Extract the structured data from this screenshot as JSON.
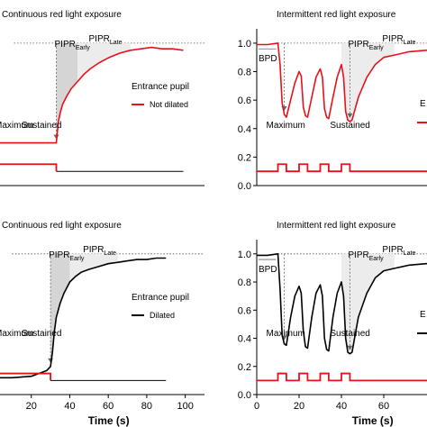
{
  "chart_data": [
    {
      "type": "line",
      "title": "Continuous red light exposure",
      "xlim": [
        0,
        100
      ],
      "ylim": [
        0,
        1.05
      ],
      "xticks": [],
      "yticks": [],
      "marker_labels": {
        "maximum": "Maximum",
        "sustained": "Sustained"
      },
      "pipr_early": {
        "base": "PIPR",
        "sub": "Early"
      },
      "pipr_late": {
        "base": "PIPR",
        "sub": "Late"
      },
      "legend": {
        "title": "Entrance pupil",
        "entry": "Not dilated",
        "color": "#e8101a"
      },
      "series": [
        {
          "color": "#e8101a",
          "x": [
            0,
            10,
            20,
            30,
            31,
            32,
            33,
            35,
            37,
            40,
            43,
            46,
            50,
            55,
            60,
            65,
            70,
            75,
            80,
            85,
            90
          ],
          "y": [
            0.3,
            0.3,
            0.3,
            0.3,
            0.45,
            0.52,
            0.57,
            0.63,
            0.68,
            0.73,
            0.78,
            0.82,
            0.86,
            0.9,
            0.93,
            0.95,
            0.96,
            0.97,
            0.96,
            0.96,
            0.95
          ]
        }
      ],
      "stimulus": {
        "on": [
          [
            0,
            30
          ]
        ],
        "high": 0.15,
        "low": 0.1,
        "end": 90,
        "color": "#e8101a"
      }
    },
    {
      "type": "line",
      "title": "Intermittent red light exposure",
      "xlim": [
        0,
        100
      ],
      "ylim": [
        0,
        1.05
      ],
      "xticks": [],
      "yticks": [
        0.0,
        0.2,
        0.4,
        0.6,
        0.8,
        1.0
      ],
      "ytick_labels": [
        "0.0",
        "0.2",
        "0.4",
        "0.6",
        "0.8",
        "1.0"
      ],
      "bpd_label": "BPD",
      "marker_labels": {
        "maximum": "Maximum",
        "sustained": "Sustained"
      },
      "pipr_early": {
        "base": "PIPR",
        "sub": "Early"
      },
      "pipr_late": {
        "base": "PIPR",
        "sub": "Late"
      },
      "legend": {
        "partial": "E",
        "color": "#e8101a"
      },
      "series": [
        {
          "color": "#e8101a",
          "x": [
            0,
            5,
            10,
            11,
            12,
            13,
            14,
            16,
            18,
            20,
            21,
            22,
            23,
            24,
            26,
            28,
            30,
            31,
            32,
            33,
            34,
            36,
            38,
            40,
            41,
            42,
            43,
            44,
            45,
            48,
            52,
            56,
            60,
            66,
            72,
            80,
            90
          ],
          "y": [
            0.99,
            0.99,
            1.0,
            0.85,
            0.58,
            0.5,
            0.48,
            0.6,
            0.72,
            0.8,
            0.77,
            0.55,
            0.49,
            0.48,
            0.62,
            0.76,
            0.82,
            0.76,
            0.54,
            0.48,
            0.47,
            0.62,
            0.76,
            0.85,
            0.76,
            0.52,
            0.46,
            0.45,
            0.46,
            0.62,
            0.76,
            0.85,
            0.9,
            0.92,
            0.94,
            0.95,
            0.96
          ]
        }
      ],
      "stimulus": {
        "on": [
          [
            10,
            14
          ],
          [
            20,
            24
          ],
          [
            30,
            34
          ],
          [
            40,
            44
          ]
        ],
        "high": 0.15,
        "low": 0.1,
        "end": 100,
        "color": "#e8101a"
      }
    },
    {
      "type": "line",
      "title": "Continuous red light exposure",
      "xlim": [
        0,
        110
      ],
      "ylim": [
        0,
        1.05
      ],
      "xticks": [
        20,
        40,
        60,
        80,
        100
      ],
      "xlabel": "Time (s)",
      "yticks": [],
      "marker_labels": {
        "maximum": "Maximum",
        "sustained": "Sustained"
      },
      "pipr_early": {
        "base": "PIPR",
        "sub": "Early"
      },
      "pipr_late": {
        "base": "PIPR",
        "sub": "Late"
      },
      "legend": {
        "title": "Entrance pupil",
        "entry": "Dilated",
        "color": "#000000"
      },
      "series": [
        {
          "color": "#000000",
          "x": [
            0,
            10,
            20,
            28,
            30,
            31,
            32,
            33,
            35,
            37,
            40,
            43,
            46,
            50,
            55,
            60,
            65,
            70,
            75,
            80,
            85,
            90
          ],
          "y": [
            0.12,
            0.12,
            0.13,
            0.17,
            0.2,
            0.3,
            0.45,
            0.55,
            0.65,
            0.72,
            0.8,
            0.84,
            0.87,
            0.89,
            0.91,
            0.93,
            0.94,
            0.95,
            0.96,
            0.96,
            0.97,
            0.97
          ]
        }
      ],
      "stimulus": {
        "on": [
          [
            0,
            30
          ]
        ],
        "high": 0.15,
        "low": 0.1,
        "end": 90,
        "color": "#e8101a"
      }
    },
    {
      "type": "line",
      "title": "Intermittent red light exposure",
      "xlim": [
        0,
        100
      ],
      "ylim": [
        0,
        1.05
      ],
      "xticks": [
        0,
        20,
        40,
        60
      ],
      "xlabel": "Time (s)",
      "yticks": [
        0.0,
        0.2,
        0.4,
        0.6,
        0.8,
        1.0
      ],
      "ytick_labels": [
        "0.0",
        "0.2",
        "0.4",
        "0.6",
        "0.8",
        "1.0"
      ],
      "bpd_label": "BPD",
      "marker_labels": {
        "maximum": "Maximum",
        "sustained": "Sustained"
      },
      "pipr_early": {
        "base": "PIPR",
        "sub": "Early"
      },
      "pipr_late": {
        "base": "PIPR",
        "sub": "Late"
      },
      "legend": {
        "partial": "E",
        "color": "#000000"
      },
      "series": [
        {
          "color": "#000000",
          "x": [
            0,
            5,
            10,
            11,
            12,
            13,
            14,
            16,
            18,
            20,
            21,
            22,
            23,
            24,
            26,
            28,
            30,
            31,
            32,
            33,
            34,
            36,
            38,
            40,
            41,
            42,
            43,
            44,
            45,
            48,
            52,
            56,
            60,
            66,
            72,
            80,
            90
          ],
          "y": [
            0.99,
            0.99,
            1.0,
            0.75,
            0.42,
            0.36,
            0.35,
            0.55,
            0.7,
            0.77,
            0.72,
            0.45,
            0.34,
            0.33,
            0.55,
            0.72,
            0.78,
            0.7,
            0.4,
            0.32,
            0.31,
            0.55,
            0.72,
            0.8,
            0.7,
            0.4,
            0.3,
            0.29,
            0.3,
            0.55,
            0.72,
            0.83,
            0.88,
            0.9,
            0.92,
            0.93,
            0.94
          ]
        }
      ],
      "stimulus": {
        "on": [
          [
            10,
            14
          ],
          [
            20,
            24
          ],
          [
            30,
            34
          ],
          [
            40,
            44
          ]
        ],
        "high": 0.15,
        "low": 0.1,
        "end": 100,
        "color": "#e8101a"
      }
    }
  ]
}
